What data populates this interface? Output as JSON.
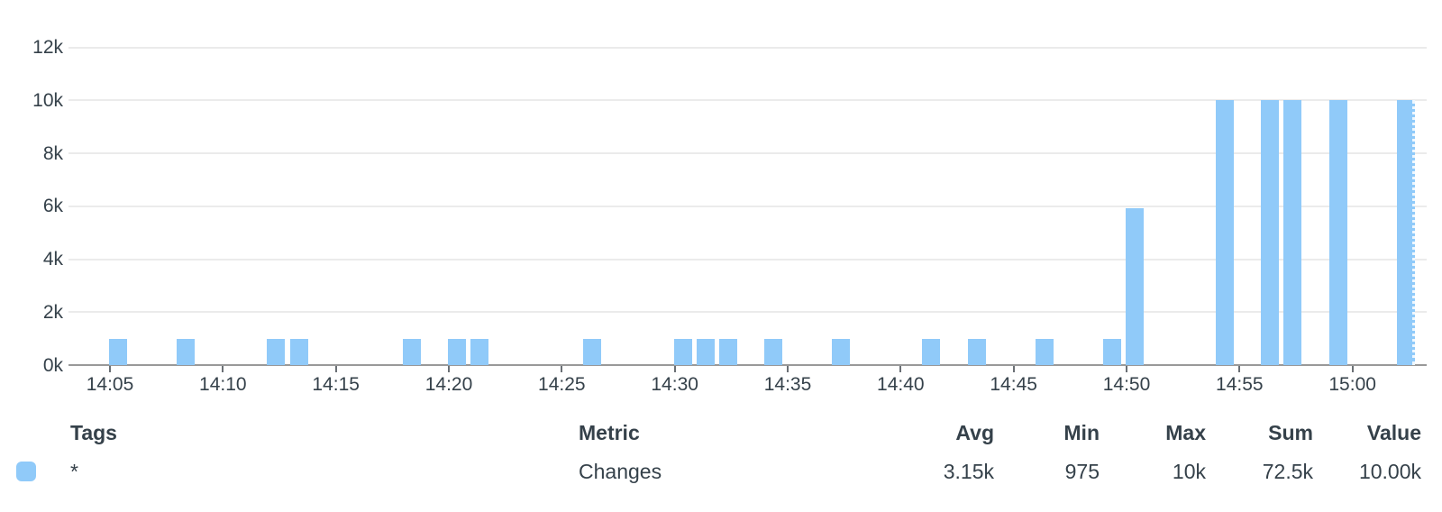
{
  "colors": {
    "bar": "#90caf9",
    "text": "#35414a",
    "grid": "#ebebeb",
    "baseline": "#999999",
    "background": "#ffffff"
  },
  "chart_data": {
    "type": "bar",
    "title": "",
    "xlabel": "",
    "ylabel": "",
    "x": [
      "14:05",
      "14:08",
      "14:12",
      "14:13",
      "14:18",
      "14:20",
      "14:21",
      "14:26",
      "14:30",
      "14:31",
      "14:32",
      "14:34",
      "14:37",
      "14:41",
      "14:43",
      "14:46",
      "14:49",
      "14:50",
      "14:54",
      "14:56",
      "14:57",
      "14:59",
      "15:02"
    ],
    "values": [
      975,
      975,
      975,
      975,
      975,
      975,
      975,
      975,
      975,
      975,
      975,
      975,
      975,
      975,
      975,
      975,
      975,
      5925,
      10000,
      10000,
      10000,
      10000,
      10000
    ],
    "ylim": [
      0,
      12000
    ],
    "ytick_values": [
      0,
      2000,
      4000,
      6000,
      8000,
      10000,
      12000
    ],
    "ytick_labels": [
      "0k",
      "2k",
      "4k",
      "6k",
      "8k",
      "10k",
      "12k"
    ],
    "xtick_labels": [
      "14:05",
      "14:10",
      "14:15",
      "14:20",
      "14:25",
      "14:30",
      "14:35",
      "14:40",
      "14:45",
      "14:50",
      "14:55",
      "15:00"
    ],
    "grid": true,
    "bar_color": "#90caf9",
    "last_bar_partial_edge": true,
    "legend_position": "bottom-table"
  },
  "legend_table": {
    "headers": {
      "tags": "Tags",
      "metric": "Metric",
      "avg": "Avg",
      "min": "Min",
      "max": "Max",
      "sum": "Sum",
      "value": "Value"
    },
    "rows": [
      {
        "swatch_color": "#90caf9",
        "tags": "*",
        "metric": "Changes",
        "avg": "3.15k",
        "min": "975",
        "max": "10k",
        "sum": "72.5k",
        "value": "10.00k"
      }
    ]
  }
}
